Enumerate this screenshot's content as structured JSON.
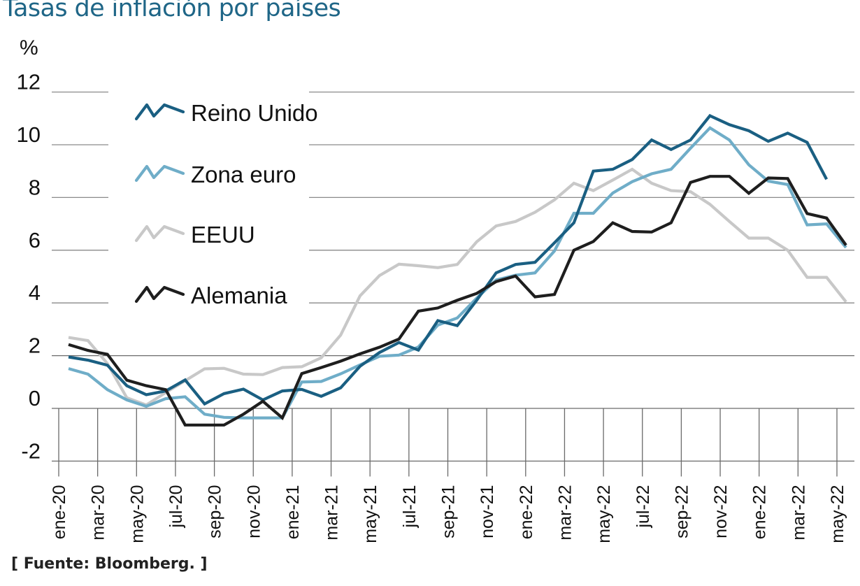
{
  "title": "Tasas de inflación por países",
  "source": "[ Fuente: Bloomberg. ]",
  "chart_data": {
    "type": "line",
    "title": "Tasas de inflación por países",
    "ylabel": "%",
    "xlabel": "",
    "ylim": [
      -2,
      12
    ],
    "yticks": [
      12,
      10,
      8,
      6,
      4,
      2,
      0,
      -2
    ],
    "ytick_labels": [
      "12",
      "10",
      "8",
      "6",
      "4",
      "2",
      "0",
      "-2"
    ],
    "xtick_labels": [
      "ene-20",
      "mar-20",
      "may-20",
      "jul-20",
      "sep-20",
      "nov-20",
      "ene-21",
      "mar-21",
      "may-21",
      "jul-21",
      "sep-21",
      "nov-21",
      "ene-22",
      "mar-22",
      "may-22",
      "jul-22",
      "sep-22",
      "nov-22",
      "ene-22",
      "mar-22",
      "may-22"
    ],
    "x_points_per_tick": 2,
    "grid": true,
    "legend_position": "top-left",
    "source": "Bloomberg",
    "series": [
      {
        "name": "Reino Unido",
        "color": "#1a5f82",
        "values": [
          1.95,
          1.83,
          1.64,
          0.86,
          0.52,
          0.66,
          1.08,
          0.17,
          0.56,
          0.73,
          0.32,
          0.66,
          0.72,
          0.46,
          0.78,
          1.6,
          2.12,
          2.5,
          2.21,
          3.33,
          3.14,
          4.1,
          5.14,
          5.46,
          5.54,
          6.28,
          7.04,
          9.0,
          9.07,
          9.44,
          10.18,
          9.82,
          10.18,
          11.1,
          10.76,
          10.53,
          10.13,
          10.44,
          10.09,
          8.69
        ]
      },
      {
        "name": "Zona euro",
        "color": "#6fadc8",
        "values": [
          1.51,
          1.3,
          0.71,
          0.32,
          0.08,
          0.37,
          0.44,
          -0.22,
          -0.34,
          -0.36,
          -0.36,
          -0.36,
          1.0,
          1.02,
          1.31,
          1.65,
          1.98,
          2.02,
          2.33,
          3.16,
          3.43,
          4.18,
          4.87,
          5.05,
          5.14,
          5.97,
          7.4,
          7.4,
          8.17,
          8.6,
          8.9,
          9.07,
          9.87,
          10.64,
          10.18,
          9.24,
          8.62,
          8.49,
          6.96,
          7.0,
          6.1
        ]
      },
      {
        "name": "EEUU",
        "color": "#c8c8c8",
        "values": [
          2.69,
          2.57,
          1.7,
          0.4,
          0.13,
          0.6,
          1.05,
          1.5,
          1.52,
          1.3,
          1.28,
          1.55,
          1.58,
          1.92,
          2.78,
          4.27,
          5.04,
          5.47,
          5.41,
          5.34,
          5.46,
          6.32,
          6.92,
          7.09,
          7.44,
          7.91,
          8.54,
          8.26,
          8.66,
          9.07,
          8.54,
          8.26,
          8.22,
          7.74,
          7.09,
          6.46,
          6.46,
          6.0,
          4.97,
          4.97,
          4.04
        ]
      },
      {
        "name": "Alemania",
        "color": "#1e1e1e",
        "values": [
          2.42,
          2.2,
          2.05,
          1.07,
          0.86,
          0.71,
          -0.63,
          -0.63,
          -0.63,
          -0.22,
          0.27,
          -0.36,
          1.32,
          1.55,
          1.79,
          2.07,
          2.32,
          2.63,
          3.69,
          3.81,
          4.1,
          4.36,
          4.81,
          5.02,
          4.23,
          4.32,
          6.0,
          6.33,
          7.04,
          6.71,
          6.69,
          7.04,
          8.57,
          8.8,
          8.8,
          8.16,
          8.74,
          8.72,
          7.39,
          7.22,
          6.19
        ]
      }
    ]
  }
}
